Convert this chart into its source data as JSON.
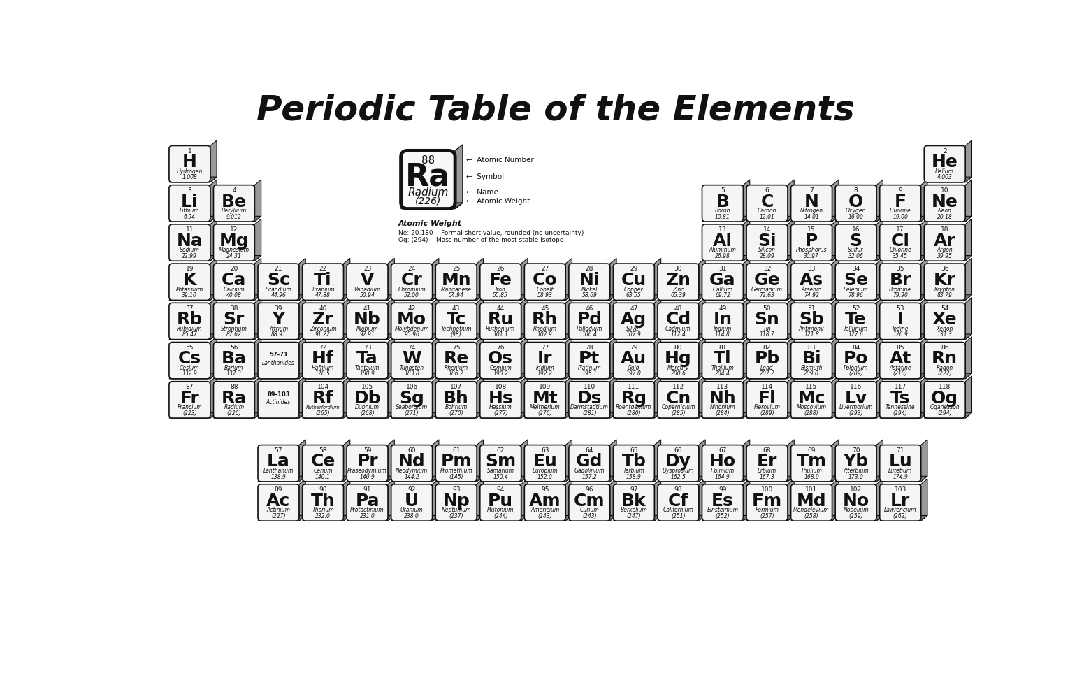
{
  "title": "Periodic Table of the Elements",
  "title_fontsize": 36,
  "bg_color": "#ffffff",
  "elements": [
    {
      "num": 1,
      "sym": "H",
      "name": "Hydrogen",
      "mass": "1.008",
      "row": 1,
      "col": 1
    },
    {
      "num": 2,
      "sym": "He",
      "name": "Helium",
      "mass": "4.003",
      "row": 1,
      "col": 18
    },
    {
      "num": 3,
      "sym": "Li",
      "name": "Lithium",
      "mass": "6.94",
      "row": 2,
      "col": 1
    },
    {
      "num": 4,
      "sym": "Be",
      "name": "Beryllium",
      "mass": "9.012",
      "row": 2,
      "col": 2
    },
    {
      "num": 5,
      "sym": "B",
      "name": "Boron",
      "mass": "10.81",
      "row": 2,
      "col": 13
    },
    {
      "num": 6,
      "sym": "C",
      "name": "Carbon",
      "mass": "12.01",
      "row": 2,
      "col": 14
    },
    {
      "num": 7,
      "sym": "N",
      "name": "Nitrogen",
      "mass": "14.01",
      "row": 2,
      "col": 15
    },
    {
      "num": 8,
      "sym": "O",
      "name": "Oxygen",
      "mass": "16.00",
      "row": 2,
      "col": 16
    },
    {
      "num": 9,
      "sym": "F",
      "name": "Fluorine",
      "mass": "19.00",
      "row": 2,
      "col": 17
    },
    {
      "num": 10,
      "sym": "Ne",
      "name": "Neon",
      "mass": "20.18",
      "row": 2,
      "col": 18
    },
    {
      "num": 11,
      "sym": "Na",
      "name": "Sodium",
      "mass": "22.99",
      "row": 3,
      "col": 1
    },
    {
      "num": 12,
      "sym": "Mg",
      "name": "Magnesium",
      "mass": "24.31",
      "row": 3,
      "col": 2
    },
    {
      "num": 13,
      "sym": "Al",
      "name": "Aluminum",
      "mass": "26.98",
      "row": 3,
      "col": 13
    },
    {
      "num": 14,
      "sym": "Si",
      "name": "Silicon",
      "mass": "28.09",
      "row": 3,
      "col": 14
    },
    {
      "num": 15,
      "sym": "P",
      "name": "Phosphorus",
      "mass": "30.97",
      "row": 3,
      "col": 15
    },
    {
      "num": 16,
      "sym": "S",
      "name": "Sulfur",
      "mass": "32.06",
      "row": 3,
      "col": 16
    },
    {
      "num": 17,
      "sym": "Cl",
      "name": "Chlorine",
      "mass": "35.45",
      "row": 3,
      "col": 17
    },
    {
      "num": 18,
      "sym": "Ar",
      "name": "Argon",
      "mass": "39.95",
      "row": 3,
      "col": 18
    },
    {
      "num": 19,
      "sym": "K",
      "name": "Potassium",
      "mass": "39.10",
      "row": 4,
      "col": 1
    },
    {
      "num": 20,
      "sym": "Ca",
      "name": "Calcium",
      "mass": "40.08",
      "row": 4,
      "col": 2
    },
    {
      "num": 21,
      "sym": "Sc",
      "name": "Scandium",
      "mass": "44.96",
      "row": 4,
      "col": 3
    },
    {
      "num": 22,
      "sym": "Ti",
      "name": "Titanium",
      "mass": "47.88",
      "row": 4,
      "col": 4
    },
    {
      "num": 23,
      "sym": "V",
      "name": "Vanadium",
      "mass": "50.94",
      "row": 4,
      "col": 5
    },
    {
      "num": 24,
      "sym": "Cr",
      "name": "Chromium",
      "mass": "52.00",
      "row": 4,
      "col": 6
    },
    {
      "num": 25,
      "sym": "Mn",
      "name": "Manganese",
      "mass": "54.94",
      "row": 4,
      "col": 7
    },
    {
      "num": 26,
      "sym": "Fe",
      "name": "Iron",
      "mass": "55.85",
      "row": 4,
      "col": 8
    },
    {
      "num": 27,
      "sym": "Co",
      "name": "Cobalt",
      "mass": "58.93",
      "row": 4,
      "col": 9
    },
    {
      "num": 28,
      "sym": "Ni",
      "name": "Nickel",
      "mass": "58.69",
      "row": 4,
      "col": 10
    },
    {
      "num": 29,
      "sym": "Cu",
      "name": "Copper",
      "mass": "63.55",
      "row": 4,
      "col": 11
    },
    {
      "num": 30,
      "sym": "Zn",
      "name": "Zinc",
      "mass": "65.39",
      "row": 4,
      "col": 12
    },
    {
      "num": 31,
      "sym": "Ga",
      "name": "Gallium",
      "mass": "69.72",
      "row": 4,
      "col": 13
    },
    {
      "num": 32,
      "sym": "Ge",
      "name": "Germanium",
      "mass": "72.63",
      "row": 4,
      "col": 14
    },
    {
      "num": 33,
      "sym": "As",
      "name": "Arsenic",
      "mass": "74.92",
      "row": 4,
      "col": 15
    },
    {
      "num": 34,
      "sym": "Se",
      "name": "Selenium",
      "mass": "78.96",
      "row": 4,
      "col": 16
    },
    {
      "num": 35,
      "sym": "Br",
      "name": "Bromine",
      "mass": "79.90",
      "row": 4,
      "col": 17
    },
    {
      "num": 36,
      "sym": "Kr",
      "name": "Krypton",
      "mass": "83.79",
      "row": 4,
      "col": 18
    },
    {
      "num": 37,
      "sym": "Rb",
      "name": "Rubidium",
      "mass": "85.47",
      "row": 5,
      "col": 1
    },
    {
      "num": 38,
      "sym": "Sr",
      "name": "Strontium",
      "mass": "87.62",
      "row": 5,
      "col": 2
    },
    {
      "num": 39,
      "sym": "Y",
      "name": "Yttrium",
      "mass": "88.91",
      "row": 5,
      "col": 3
    },
    {
      "num": 40,
      "sym": "Zr",
      "name": "Zirconium",
      "mass": "91.22",
      "row": 5,
      "col": 4
    },
    {
      "num": 41,
      "sym": "Nb",
      "name": "Niobium",
      "mass": "92.91",
      "row": 5,
      "col": 5
    },
    {
      "num": 42,
      "sym": "Mo",
      "name": "Molybdenum",
      "mass": "95.96",
      "row": 5,
      "col": 6
    },
    {
      "num": 43,
      "sym": "Tc",
      "name": "Technetium",
      "mass": "(98)",
      "row": 5,
      "col": 7
    },
    {
      "num": 44,
      "sym": "Ru",
      "name": "Ruthenium",
      "mass": "101.1",
      "row": 5,
      "col": 8
    },
    {
      "num": 45,
      "sym": "Rh",
      "name": "Rhodium",
      "mass": "102.9",
      "row": 5,
      "col": 9
    },
    {
      "num": 46,
      "sym": "Pd",
      "name": "Palladium",
      "mass": "106.4",
      "row": 5,
      "col": 10
    },
    {
      "num": 47,
      "sym": "Ag",
      "name": "Silver",
      "mass": "107.9",
      "row": 5,
      "col": 11
    },
    {
      "num": 48,
      "sym": "Cd",
      "name": "Cadmium",
      "mass": "112.4",
      "row": 5,
      "col": 12
    },
    {
      "num": 49,
      "sym": "In",
      "name": "Indium",
      "mass": "114.8",
      "row": 5,
      "col": 13
    },
    {
      "num": 50,
      "sym": "Sn",
      "name": "Tin",
      "mass": "118.7",
      "row": 5,
      "col": 14
    },
    {
      "num": 51,
      "sym": "Sb",
      "name": "Antimony",
      "mass": "121.8",
      "row": 5,
      "col": 15
    },
    {
      "num": 52,
      "sym": "Te",
      "name": "Tellurium",
      "mass": "127.6",
      "row": 5,
      "col": 16
    },
    {
      "num": 53,
      "sym": "I",
      "name": "Iodine",
      "mass": "126.9",
      "row": 5,
      "col": 17
    },
    {
      "num": 54,
      "sym": "Xe",
      "name": "Xenon",
      "mass": "131.3",
      "row": 5,
      "col": 18
    },
    {
      "num": 55,
      "sym": "Cs",
      "name": "Cesium",
      "mass": "132.9",
      "row": 6,
      "col": 1
    },
    {
      "num": 56,
      "sym": "Ba",
      "name": "Barium",
      "mass": "137.3",
      "row": 6,
      "col": 2
    },
    {
      "num": 57,
      "sym": "*",
      "name": "57-71\nLanthanides",
      "mass": "",
      "row": 6,
      "col": 3,
      "is_ref": true
    },
    {
      "num": 72,
      "sym": "Hf",
      "name": "Hafnium",
      "mass": "178.5",
      "row": 6,
      "col": 4
    },
    {
      "num": 73,
      "sym": "Ta",
      "name": "Tantalum",
      "mass": "180.9",
      "row": 6,
      "col": 5
    },
    {
      "num": 74,
      "sym": "W",
      "name": "Tungsten",
      "mass": "183.8",
      "row": 6,
      "col": 6
    },
    {
      "num": 75,
      "sym": "Re",
      "name": "Rhenium",
      "mass": "186.2",
      "row": 6,
      "col": 7
    },
    {
      "num": 76,
      "sym": "Os",
      "name": "Osmium",
      "mass": "190.2",
      "row": 6,
      "col": 8
    },
    {
      "num": 77,
      "sym": "Ir",
      "name": "Iridium",
      "mass": "192.2",
      "row": 6,
      "col": 9
    },
    {
      "num": 78,
      "sym": "Pt",
      "name": "Platinum",
      "mass": "195.1",
      "row": 6,
      "col": 10
    },
    {
      "num": 79,
      "sym": "Au",
      "name": "Gold",
      "mass": "197.0",
      "row": 6,
      "col": 11
    },
    {
      "num": 80,
      "sym": "Hg",
      "name": "Mercury",
      "mass": "200.6",
      "row": 6,
      "col": 12
    },
    {
      "num": 81,
      "sym": "Tl",
      "name": "Thallium",
      "mass": "204.4",
      "row": 6,
      "col": 13
    },
    {
      "num": 82,
      "sym": "Pb",
      "name": "Lead",
      "mass": "207.2",
      "row": 6,
      "col": 14
    },
    {
      "num": 83,
      "sym": "Bi",
      "name": "Bismuth",
      "mass": "209.0",
      "row": 6,
      "col": 15
    },
    {
      "num": 84,
      "sym": "Po",
      "name": "Polonium",
      "mass": "(209)",
      "row": 6,
      "col": 16
    },
    {
      "num": 85,
      "sym": "At",
      "name": "Astatine",
      "mass": "(210)",
      "row": 6,
      "col": 17
    },
    {
      "num": 86,
      "sym": "Rn",
      "name": "Radon",
      "mass": "(222)",
      "row": 6,
      "col": 18
    },
    {
      "num": 87,
      "sym": "Fr",
      "name": "Francium",
      "mass": "(223)",
      "row": 7,
      "col": 1
    },
    {
      "num": 88,
      "sym": "Ra",
      "name": "Radium",
      "mass": "(226)",
      "row": 7,
      "col": 2
    },
    {
      "num": 89,
      "sym": "**",
      "name": "89-103\nActinides",
      "mass": "",
      "row": 7,
      "col": 3,
      "is_ref": true
    },
    {
      "num": 104,
      "sym": "Rf",
      "name": "Rutherfordium",
      "mass": "(265)",
      "row": 7,
      "col": 4
    },
    {
      "num": 105,
      "sym": "Db",
      "name": "Dubnium",
      "mass": "(268)",
      "row": 7,
      "col": 5
    },
    {
      "num": 106,
      "sym": "Sg",
      "name": "Seaborgium",
      "mass": "(271)",
      "row": 7,
      "col": 6
    },
    {
      "num": 107,
      "sym": "Bh",
      "name": "Bohrium",
      "mass": "(270)",
      "row": 7,
      "col": 7
    },
    {
      "num": 108,
      "sym": "Hs",
      "name": "Hassium",
      "mass": "(277)",
      "row": 7,
      "col": 8
    },
    {
      "num": 109,
      "sym": "Mt",
      "name": "Meitnerium",
      "mass": "(276)",
      "row": 7,
      "col": 9
    },
    {
      "num": 110,
      "sym": "Ds",
      "name": "Darmstadtium",
      "mass": "(281)",
      "row": 7,
      "col": 10
    },
    {
      "num": 111,
      "sym": "Rg",
      "name": "Roentgenium",
      "mass": "(280)",
      "row": 7,
      "col": 11
    },
    {
      "num": 112,
      "sym": "Cn",
      "name": "Copernicium",
      "mass": "(285)",
      "row": 7,
      "col": 12
    },
    {
      "num": 113,
      "sym": "Nh",
      "name": "Nihonium",
      "mass": "(284)",
      "row": 7,
      "col": 13
    },
    {
      "num": 114,
      "sym": "Fl",
      "name": "Flerovium",
      "mass": "(289)",
      "row": 7,
      "col": 14
    },
    {
      "num": 115,
      "sym": "Mc",
      "name": "Moscovium",
      "mass": "(288)",
      "row": 7,
      "col": 15
    },
    {
      "num": 116,
      "sym": "Lv",
      "name": "Livermorium",
      "mass": "(293)",
      "row": 7,
      "col": 16
    },
    {
      "num": 117,
      "sym": "Ts",
      "name": "Tennessine",
      "mass": "(294)",
      "row": 7,
      "col": 17
    },
    {
      "num": 118,
      "sym": "Og",
      "name": "Oganesson",
      "mass": "(294)",
      "row": 7,
      "col": 18
    },
    {
      "num": 57,
      "sym": "La",
      "name": "Lanthanum",
      "mass": "138.9",
      "row": 9,
      "col": 3
    },
    {
      "num": 58,
      "sym": "Ce",
      "name": "Cerium",
      "mass": "140.1",
      "row": 9,
      "col": 4
    },
    {
      "num": 59,
      "sym": "Pr",
      "name": "Praseodymium",
      "mass": "140.9",
      "row": 9,
      "col": 5
    },
    {
      "num": 60,
      "sym": "Nd",
      "name": "Neodymium",
      "mass": "144.2",
      "row": 9,
      "col": 6
    },
    {
      "num": 61,
      "sym": "Pm",
      "name": "Promethium",
      "mass": "(145)",
      "row": 9,
      "col": 7
    },
    {
      "num": 62,
      "sym": "Sm",
      "name": "Samarium",
      "mass": "150.4",
      "row": 9,
      "col": 8
    },
    {
      "num": 63,
      "sym": "Eu",
      "name": "Europium",
      "mass": "152.0",
      "row": 9,
      "col": 9
    },
    {
      "num": 64,
      "sym": "Gd",
      "name": "Gadolinium",
      "mass": "157.2",
      "row": 9,
      "col": 10
    },
    {
      "num": 65,
      "sym": "Tb",
      "name": "Terbium",
      "mass": "158.9",
      "row": 9,
      "col": 11
    },
    {
      "num": 66,
      "sym": "Dy",
      "name": "Dysprosium",
      "mass": "162.5",
      "row": 9,
      "col": 12
    },
    {
      "num": 67,
      "sym": "Ho",
      "name": "Holmium",
      "mass": "164.9",
      "row": 9,
      "col": 13
    },
    {
      "num": 68,
      "sym": "Er",
      "name": "Erbium",
      "mass": "167.3",
      "row": 9,
      "col": 14
    },
    {
      "num": 69,
      "sym": "Tm",
      "name": "Thulium",
      "mass": "168.9",
      "row": 9,
      "col": 15
    },
    {
      "num": 70,
      "sym": "Yb",
      "name": "Ytterbium",
      "mass": "173.0",
      "row": 9,
      "col": 16
    },
    {
      "num": 71,
      "sym": "Lu",
      "name": "Lutetium",
      "mass": "174.9",
      "row": 9,
      "col": 17
    },
    {
      "num": 89,
      "sym": "Ac",
      "name": "Actinium",
      "mass": "(227)",
      "row": 10,
      "col": 3
    },
    {
      "num": 90,
      "sym": "Th",
      "name": "Thorium",
      "mass": "232.0",
      "row": 10,
      "col": 4
    },
    {
      "num": 91,
      "sym": "Pa",
      "name": "Protactinium",
      "mass": "231.0",
      "row": 10,
      "col": 5
    },
    {
      "num": 92,
      "sym": "U",
      "name": "Uranium",
      "mass": "238.0",
      "row": 10,
      "col": 6
    },
    {
      "num": 93,
      "sym": "Np",
      "name": "Neptunium",
      "mass": "(237)",
      "row": 10,
      "col": 7
    },
    {
      "num": 94,
      "sym": "Pu",
      "name": "Plutonium",
      "mass": "(244)",
      "row": 10,
      "col": 8
    },
    {
      "num": 95,
      "sym": "Am",
      "name": "Americium",
      "mass": "(243)",
      "row": 10,
      "col": 9
    },
    {
      "num": 96,
      "sym": "Cm",
      "name": "Curium",
      "mass": "(243)",
      "row": 10,
      "col": 10
    },
    {
      "num": 97,
      "sym": "Bk",
      "name": "Berkelium",
      "mass": "(247)",
      "row": 10,
      "col": 11
    },
    {
      "num": 98,
      "sym": "Cf",
      "name": "Californium",
      "mass": "(251)",
      "row": 10,
      "col": 12
    },
    {
      "num": 99,
      "sym": "Es",
      "name": "Einsteinium",
      "mass": "(252)",
      "row": 10,
      "col": 13
    },
    {
      "num": 100,
      "sym": "Fm",
      "name": "Fermium",
      "mass": "(257)",
      "row": 10,
      "col": 14
    },
    {
      "num": 101,
      "sym": "Md",
      "name": "Mendelevium",
      "mass": "(258)",
      "row": 10,
      "col": 15
    },
    {
      "num": 102,
      "sym": "No",
      "name": "Nobelium",
      "mass": "(259)",
      "row": 10,
      "col": 16
    },
    {
      "num": 103,
      "sym": "Lr",
      "name": "Lawrencium",
      "mass": "(262)",
      "row": 10,
      "col": 17
    }
  ],
  "atomic_weight_note": "Atomic Weight",
  "ne_note": "Ne: 20.180    Formal short value, rounded (no uncertainty)",
  "og_note": "Og: (294)    Mass number of the most stable isotope"
}
